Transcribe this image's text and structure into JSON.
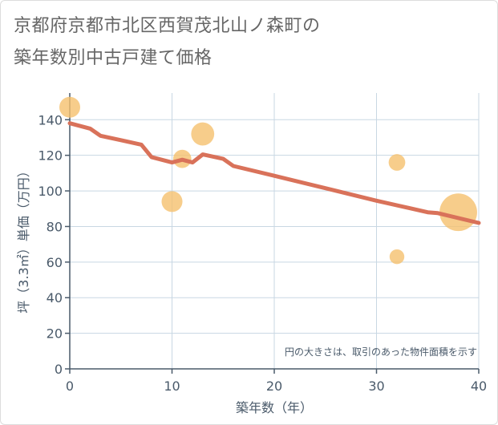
{
  "title": {
    "line1": "京都府京都市北区西賀茂北山ノ森町の",
    "line2": "築年数別中古戸建て価格"
  },
  "colors": {
    "bubble": "#f5c06e",
    "trend": "#d9725a",
    "grid": "#c8d7e3",
    "axis": "#4a5a6a"
  },
  "chart_data": {
    "type": "scatter",
    "title": "京都府京都市北区西賀茂北山ノ森町の築年数別中古戸建て価格",
    "xlabel": "築年数（年）",
    "ylabel": "坪（3.3㎡）単価（万円）",
    "xlim": [
      0,
      40
    ],
    "ylim": [
      0,
      155
    ],
    "xticks": [
      0,
      10,
      20,
      30,
      40
    ],
    "yticks": [
      0,
      20,
      40,
      60,
      80,
      100,
      120,
      140
    ],
    "grid": true,
    "note": "円の大きさは、取引のあった物件面積を示す",
    "points": [
      {
        "x": 0,
        "y": 147,
        "size": 3
      },
      {
        "x": 10,
        "y": 94,
        "size": 3
      },
      {
        "x": 11,
        "y": 118,
        "size": 2
      },
      {
        "x": 13,
        "y": 132,
        "size": 4
      },
      {
        "x": 32,
        "y": 116,
        "size": 1.5
      },
      {
        "x": 32,
        "y": 63,
        "size": 1
      },
      {
        "x": 38,
        "y": 88,
        "size": 14
      }
    ],
    "trend": {
      "x": [
        0,
        2,
        3,
        5,
        7,
        8,
        10,
        11,
        12,
        13,
        15,
        16,
        20,
        25,
        30,
        35,
        36,
        40
      ],
      "y": [
        138,
        135,
        131,
        128.5,
        126,
        119,
        116,
        117.5,
        116,
        120.5,
        118,
        114,
        108.5,
        101.5,
        94.5,
        88,
        87.5,
        82
      ]
    }
  }
}
